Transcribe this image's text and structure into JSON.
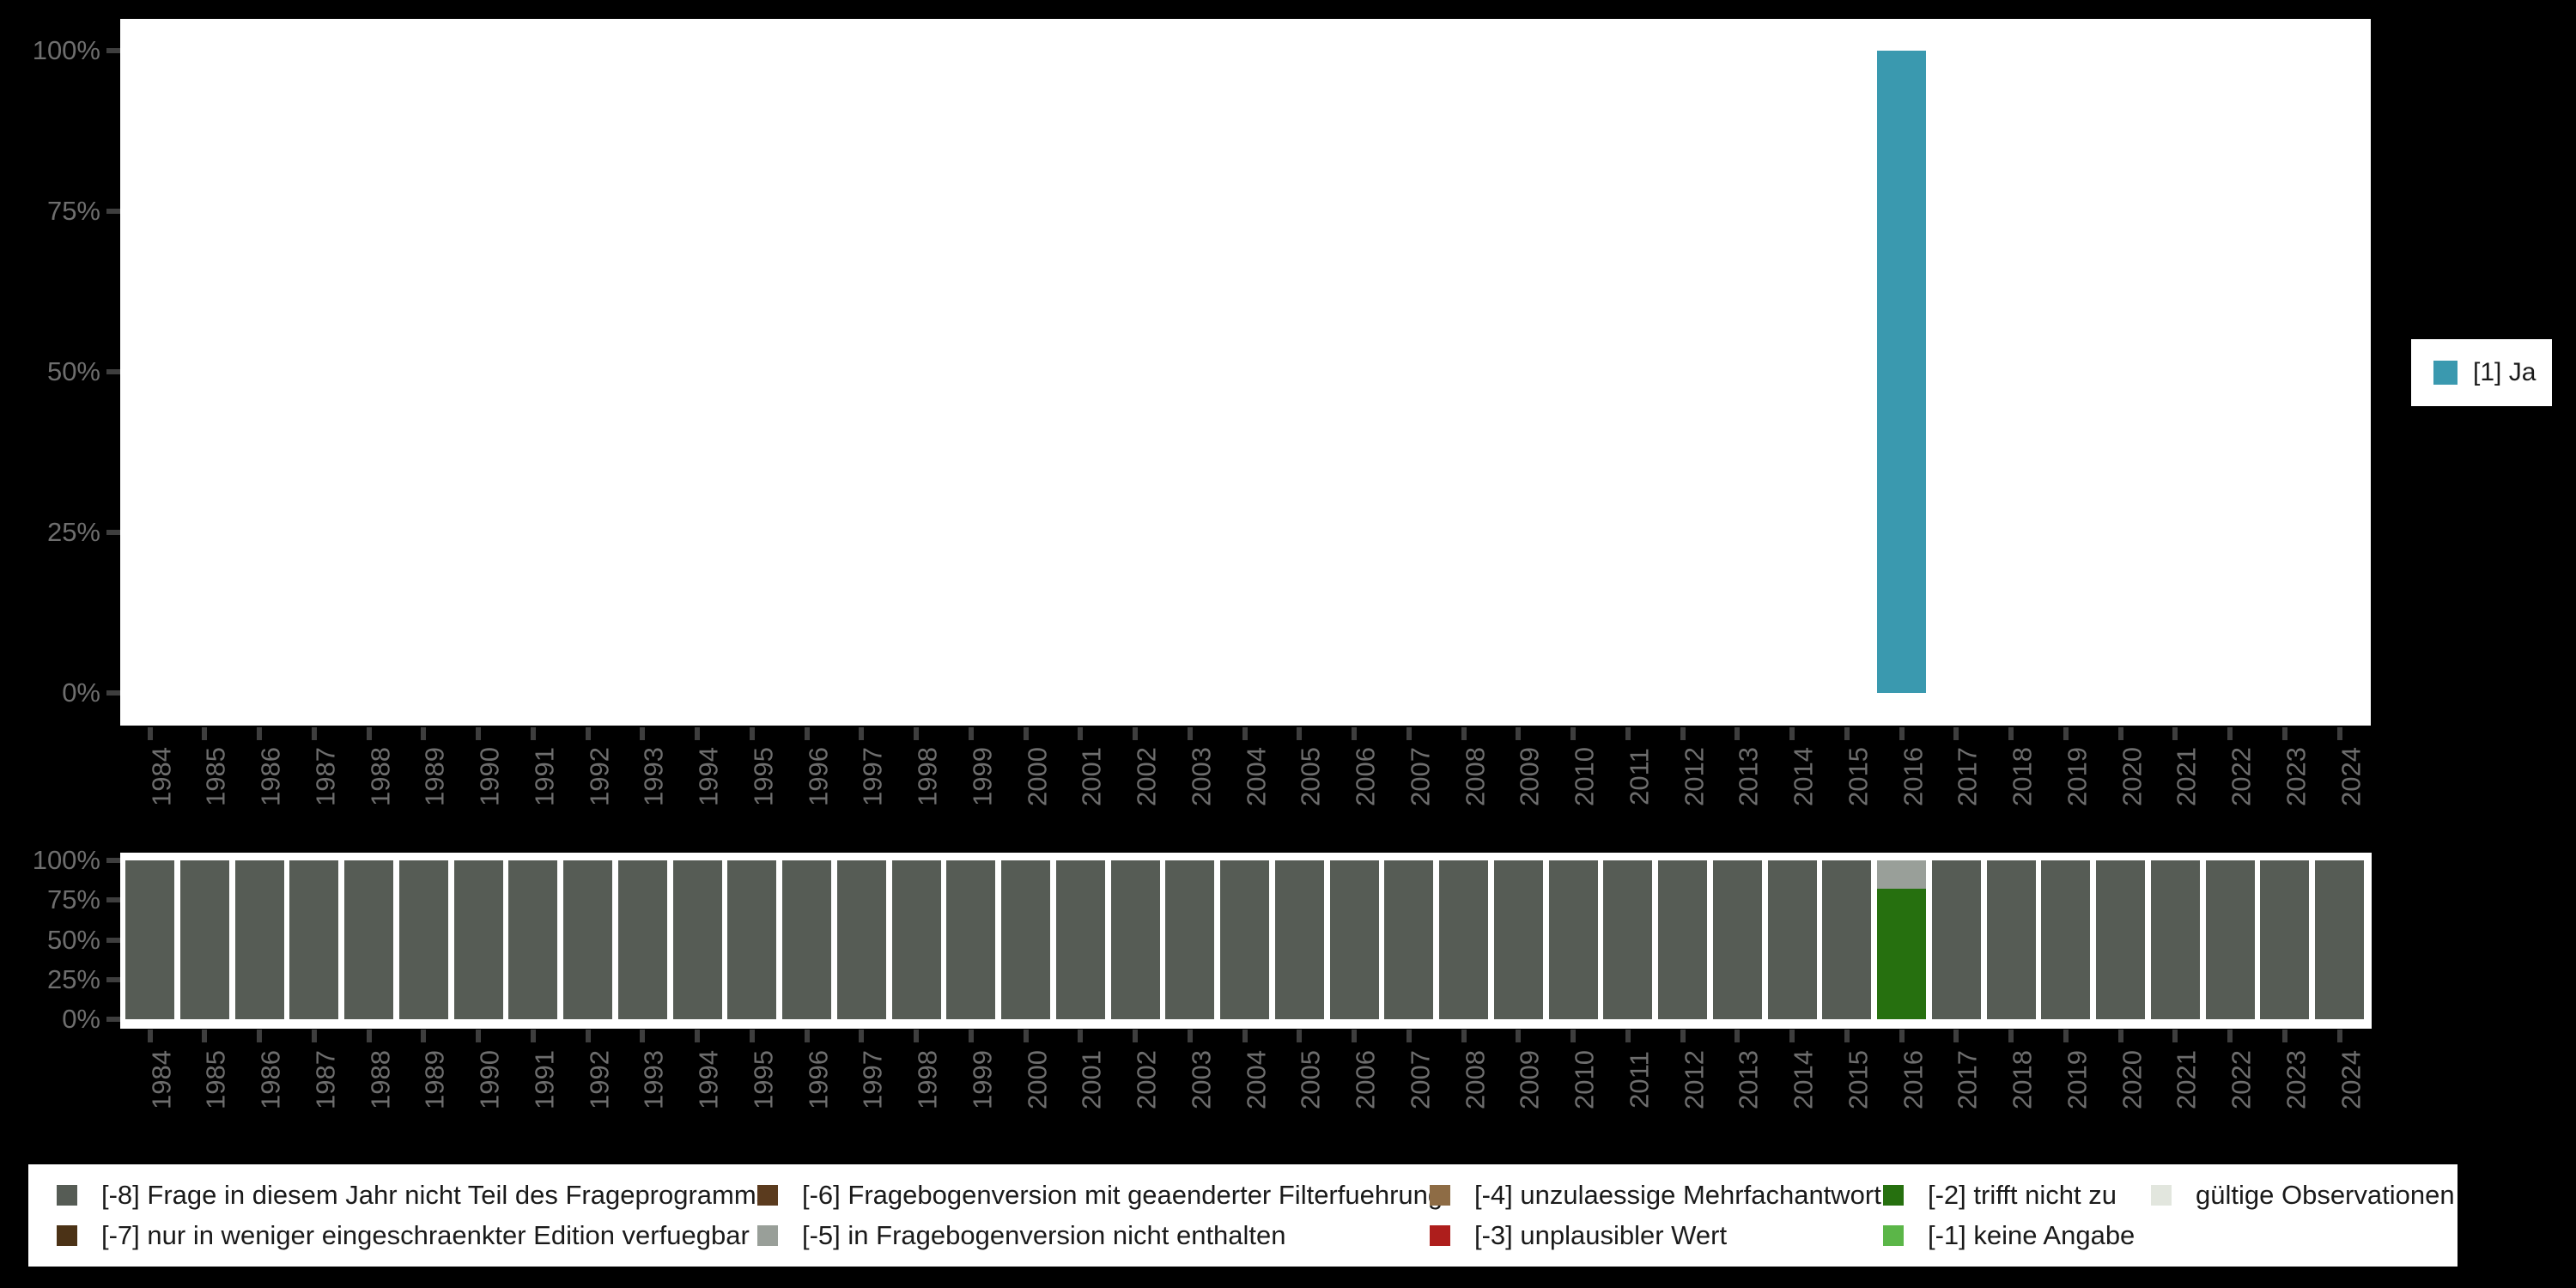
{
  "colors": {
    "page_bg": "#000000",
    "plot_bg": "#FFFFFF",
    "axis_label": "#6E6E6E",
    "tick": "#3E3E3E"
  },
  "top_chart": {
    "legend_label": "[1] Ja",
    "legend_color": "#3A99AF"
  },
  "chart_data": [
    {
      "type": "bar",
      "title": "",
      "categories": [
        "1984",
        "1985",
        "1986",
        "1987",
        "1988",
        "1989",
        "1990",
        "1991",
        "1992",
        "1993",
        "1994",
        "1995",
        "1996",
        "1997",
        "1998",
        "1999",
        "2000",
        "2001",
        "2002",
        "2003",
        "2004",
        "2005",
        "2006",
        "2007",
        "2008",
        "2009",
        "2010",
        "2011",
        "2012",
        "2013",
        "2014",
        "2015",
        "2016",
        "2017",
        "2018",
        "2019",
        "2020",
        "2021",
        "2022",
        "2023",
        "2024"
      ],
      "series": [
        {
          "name": "[1] Ja",
          "color": "#3A99AF",
          "values": [
            0,
            0,
            0,
            0,
            0,
            0,
            0,
            0,
            0,
            0,
            0,
            0,
            0,
            0,
            0,
            0,
            0,
            0,
            0,
            0,
            0,
            0,
            0,
            0,
            0,
            0,
            0,
            0,
            0,
            0,
            0,
            0,
            100,
            0,
            0,
            0,
            0,
            0,
            0,
            0,
            0
          ]
        }
      ],
      "ylim": [
        0,
        100
      ],
      "yticks": [
        "0%",
        "25%",
        "50%",
        "75%",
        "100%"
      ],
      "xtick_rotation": 90,
      "grid": false,
      "legend_position": "right"
    },
    {
      "type": "bar_stacked",
      "title": "",
      "categories": [
        "1984",
        "1985",
        "1986",
        "1987",
        "1988",
        "1989",
        "1990",
        "1991",
        "1992",
        "1993",
        "1994",
        "1995",
        "1996",
        "1997",
        "1998",
        "1999",
        "2000",
        "2001",
        "2002",
        "2003",
        "2004",
        "2005",
        "2006",
        "2007",
        "2008",
        "2009",
        "2010",
        "2011",
        "2012",
        "2013",
        "2014",
        "2015",
        "2016",
        "2017",
        "2018",
        "2019",
        "2020",
        "2021",
        "2022",
        "2023",
        "2024"
      ],
      "series": [
        {
          "name": "[-8] Frage in diesem Jahr nicht Teil des Frageprogramms",
          "color": "#565C55",
          "values": [
            100,
            100,
            100,
            100,
            100,
            100,
            100,
            100,
            100,
            100,
            100,
            100,
            100,
            100,
            100,
            100,
            100,
            100,
            100,
            100,
            100,
            100,
            100,
            100,
            100,
            100,
            100,
            100,
            100,
            100,
            100,
            100,
            0,
            100,
            100,
            100,
            100,
            100,
            100,
            100,
            100
          ]
        },
        {
          "name": "[-2] trifft nicht zu",
          "color": "#26700F",
          "values": [
            0,
            0,
            0,
            0,
            0,
            0,
            0,
            0,
            0,
            0,
            0,
            0,
            0,
            0,
            0,
            0,
            0,
            0,
            0,
            0,
            0,
            0,
            0,
            0,
            0,
            0,
            0,
            0,
            0,
            0,
            0,
            0,
            82,
            0,
            0,
            0,
            0,
            0,
            0,
            0,
            0
          ]
        },
        {
          "name": "[-5] in Fragebogenversion nicht enthalten",
          "color": "#999F99",
          "values": [
            0,
            0,
            0,
            0,
            0,
            0,
            0,
            0,
            0,
            0,
            0,
            0,
            0,
            0,
            0,
            0,
            0,
            0,
            0,
            0,
            0,
            0,
            0,
            0,
            0,
            0,
            0,
            0,
            0,
            0,
            0,
            0,
            18,
            0,
            0,
            0,
            0,
            0,
            0,
            0,
            0
          ]
        }
      ],
      "ylim": [
        0,
        100
      ],
      "yticks": [
        "0%",
        "25%",
        "50%",
        "75%",
        "100%"
      ],
      "xtick_rotation": 90,
      "grid": false,
      "legend_position": "bottom"
    }
  ],
  "legend": {
    "columns": [
      [
        {
          "label": "[-8] Frage in diesem Jahr nicht Teil des Frageprogramms",
          "color": "#565C55"
        },
        {
          "label": "[-7] nur in weniger eingeschraenkter Edition verfuegbar",
          "color": "#4B3216"
        }
      ],
      [
        {
          "label": "[-6] Fragebogenversion mit geaenderter Filterfuehrung",
          "color": "#5B3B1E"
        },
        {
          "label": "[-5] in Fragebogenversion nicht enthalten",
          "color": "#999F99"
        }
      ],
      [
        {
          "label": "[-4] unzulaessige Mehrfachantwort",
          "color": "#8E6C45"
        },
        {
          "label": "[-3] unplausibler Wert",
          "color": "#AE1E1C"
        }
      ],
      [
        {
          "label": "[-2] trifft nicht zu",
          "color": "#26700F"
        },
        {
          "label": "[-1] keine Angabe",
          "color": "#5BB648"
        }
      ],
      [
        {
          "label": "gültige Observationen",
          "color": "#E2E6DE"
        }
      ]
    ]
  }
}
